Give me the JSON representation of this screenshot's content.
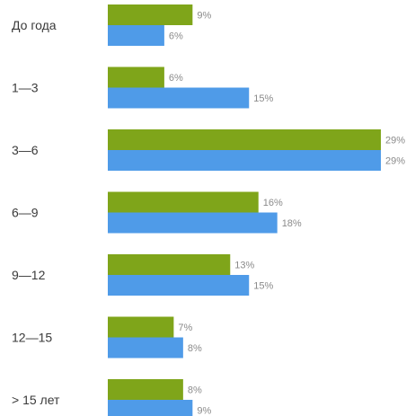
{
  "chart_data": {
    "type": "bar",
    "orientation": "horizontal",
    "categories": [
      "До года",
      "1—3",
      "3—6",
      "6—9",
      "9—12",
      "12—15",
      "> 15 лет"
    ],
    "series": [
      {
        "values": [
          9,
          6,
          29,
          16,
          13,
          7,
          8
        ],
        "color": "#7fa51a"
      },
      {
        "values": [
          6,
          15,
          29,
          18,
          15,
          8,
          9
        ],
        "color": "#4f9be8"
      }
    ],
    "value_suffix": "%",
    "xlim": [
      0,
      30
    ],
    "grid": false,
    "legend": "none"
  }
}
